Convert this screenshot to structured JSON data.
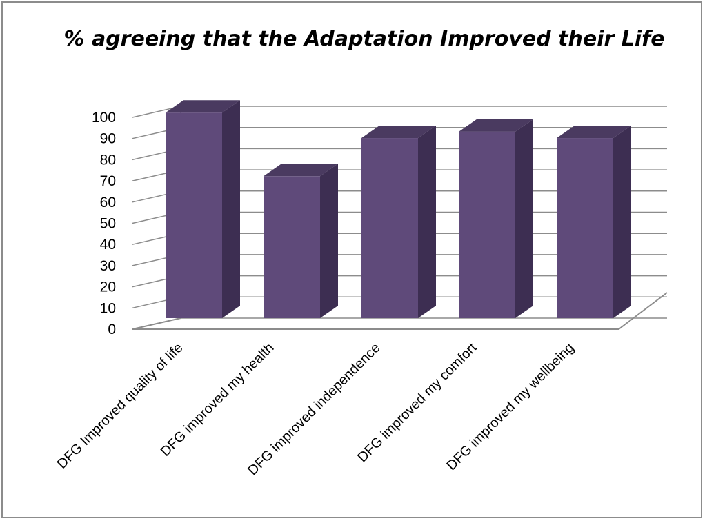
{
  "chart_data": {
    "type": "bar",
    "title": "% agreeing that the Adaptation Improved their Life",
    "xlabel": "",
    "ylabel": "",
    "categories": [
      "DFG Improved quality of life",
      "DFG improved my health",
      "DFG improved independence",
      "DFG improved my comfort",
      "DFG improved my wellbeing"
    ],
    "values": [
      97,
      67,
      85,
      88,
      85
    ],
    "ylim": [
      0,
      100
    ],
    "yticks": [
      "0",
      "10",
      "20",
      "30",
      "40",
      "50",
      "60",
      "70",
      "80",
      "90",
      "100"
    ],
    "grid": true,
    "legend": "none",
    "style": "3d-column",
    "colors": {
      "bar_front": "#5f4a7a",
      "bar_side": "#3d2e52",
      "bar_top": "#4a3a60",
      "grid": "#8c8c8c",
      "frame": "#8c8c8c"
    }
  }
}
